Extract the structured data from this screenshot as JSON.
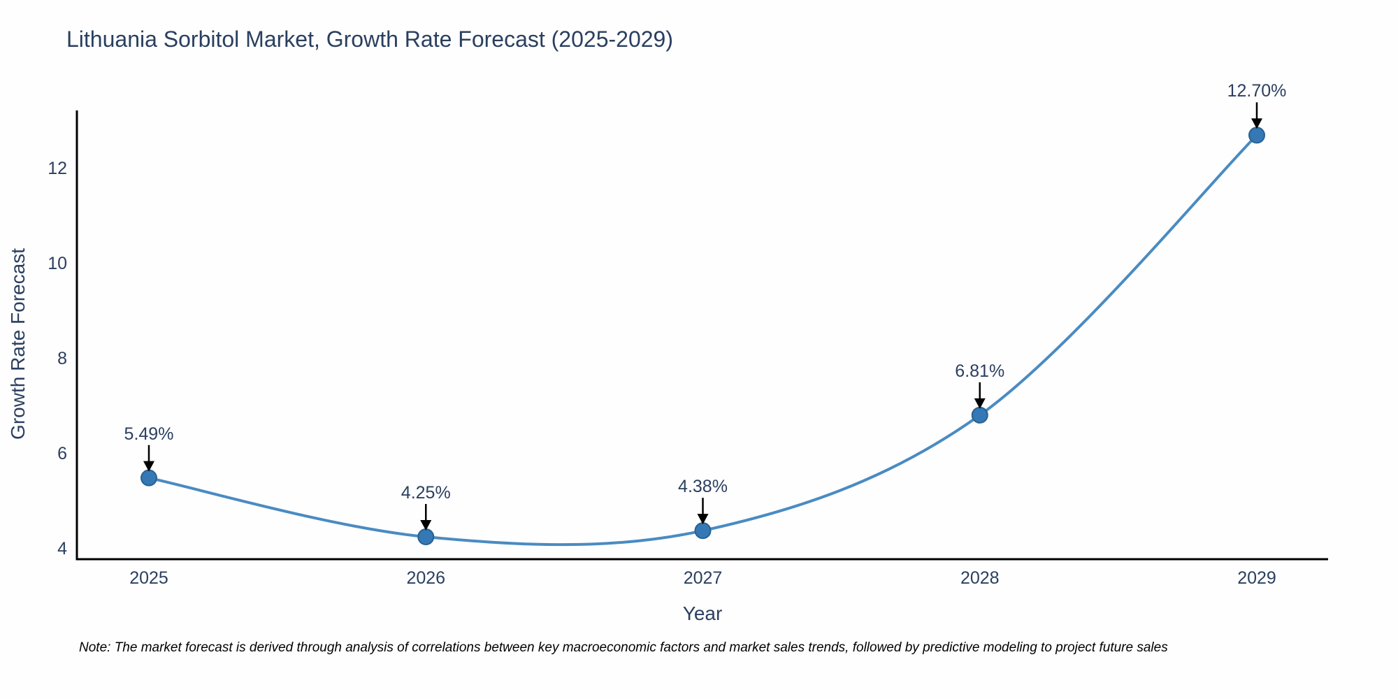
{
  "title": "Lithuania Sorbitol Market, Growth Rate Forecast (2025-2029)",
  "note": "Note: The market forecast is derived through analysis of correlations between key macroeconomic factors and market sales trends, followed by predictive modeling to project future sales",
  "chart_data": {
    "type": "line",
    "title": "Lithuania Sorbitol Market, Growth Rate Forecast (2025-2029)",
    "xlabel": "Year",
    "ylabel": "Growth Rate Forecast",
    "categories": [
      2025,
      2026,
      2027,
      2028,
      2029
    ],
    "values": [
      5.49,
      4.25,
      4.38,
      6.81,
      12.7
    ],
    "point_labels": [
      "5.49%",
      "4.25%",
      "4.38%",
      "6.81%",
      "12.70%"
    ],
    "x_tick_labels": [
      "2025",
      "2026",
      "2027",
      "2028",
      "2029"
    ],
    "y_ticks": [
      4,
      6,
      8,
      10,
      12
    ],
    "ylim": [
      3.78,
      13.22
    ],
    "line_shape": "spline",
    "grid": false,
    "legend": false,
    "annotation_style": "black-arrow-down-to-point"
  },
  "colors": {
    "line": "#4a8bc2",
    "marker_fill": "#3478b5",
    "marker_edge": "#29618f",
    "axis_line": "#000000",
    "title_text": "#2a3f5f",
    "tick_text": "#2a3f5f",
    "annotation_arrow": "#000000",
    "note_text": "#000000",
    "background": "#fefefe"
  }
}
